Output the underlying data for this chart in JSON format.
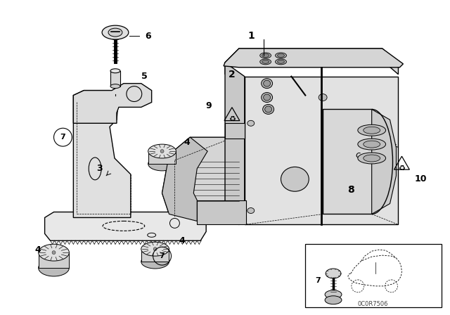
{
  "bg_color": "#ffffff",
  "line_color": "#000000",
  "fig_width": 6.4,
  "fig_height": 4.48,
  "dpi": 100,
  "watermark": "0C0R7506"
}
